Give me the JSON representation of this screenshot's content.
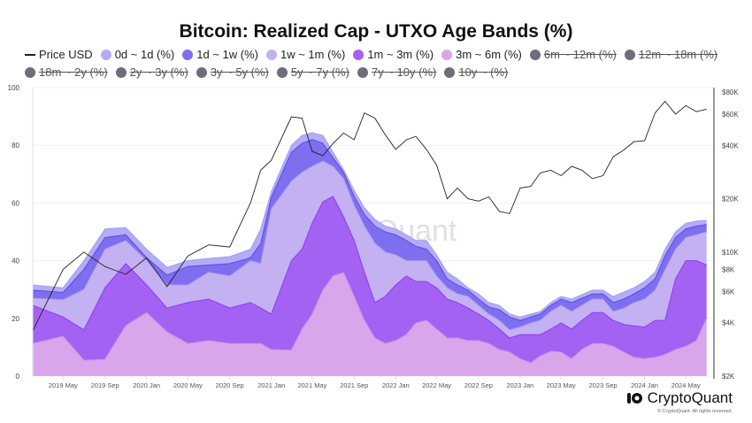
{
  "title": "Bitcoin: Realized Cap - UTXO Age Bands (%)",
  "legend": [
    {
      "label": "Price USD",
      "type": "line",
      "color": "#222222",
      "active": true
    },
    {
      "label": "0d ~ 1d (%)",
      "type": "dot",
      "color": "#b5acf7",
      "active": true
    },
    {
      "label": "1d ~ 1w (%)",
      "type": "dot",
      "color": "#7d6ff0",
      "active": true
    },
    {
      "label": "1w ~ 1m (%)",
      "type": "dot",
      "color": "#c3b1f2",
      "active": true
    },
    {
      "label": "1m ~ 3m (%)",
      "type": "dot",
      "color": "#a462f3",
      "active": true
    },
    {
      "label": "3m ~ 6m (%)",
      "type": "dot",
      "color": "#d9a6ec",
      "active": true
    },
    {
      "label": "6m ~ 12m (%)",
      "type": "dot",
      "color": "#6e6d7a",
      "active": false
    },
    {
      "label": "12m ~ 18m (%)",
      "type": "dot",
      "color": "#6e6d7a",
      "active": false
    },
    {
      "label": "18m ~ 2y (%)",
      "type": "dot",
      "color": "#6e6d7a",
      "active": false
    },
    {
      "label": "2y ~ 3y (%)",
      "type": "dot",
      "color": "#6e6d7a",
      "active": false
    },
    {
      "label": "3y ~ 5y (%)",
      "type": "dot",
      "color": "#6e6d7a",
      "active": false
    },
    {
      "label": "5y ~ 7y (%)",
      "type": "dot",
      "color": "#6e6d7a",
      "active": false
    },
    {
      "label": "7y ~ 10y (%)",
      "type": "dot",
      "color": "#6e6d7a",
      "active": false
    },
    {
      "label": "10y ~ (%)",
      "type": "dot",
      "color": "#6e6d7a",
      "active": false
    }
  ],
  "watermark": "CryptoQuant",
  "brand": {
    "name": "CryptoQuant",
    "copyright": "© CryptoQuant. All rights reserved."
  },
  "chart_data": {
    "type": "area",
    "stacked": true,
    "title": "Bitcoin: Realized Cap - UTXO Age Bands (%)",
    "grid": true,
    "legend_position": "top",
    "x": [
      "2019-02",
      "2019-05",
      "2019-07",
      "2019-09",
      "2019-11",
      "2020-01",
      "2020-03",
      "2020-05",
      "2020-07",
      "2020-09",
      "2020-11",
      "2020-12",
      "2021-01",
      "2021-03",
      "2021-04",
      "2021-05",
      "2021-06",
      "2021-07",
      "2021-08",
      "2021-09",
      "2021-10",
      "2021-11",
      "2021-12",
      "2022-01",
      "2022-02",
      "2022-03",
      "2022-04",
      "2022-05",
      "2022-06",
      "2022-07",
      "2022-08",
      "2022-09",
      "2022-10",
      "2022-11",
      "2022-12",
      "2023-01",
      "2023-02",
      "2023-03",
      "2023-04",
      "2023-05",
      "2023-06",
      "2023-07",
      "2023-08",
      "2023-09",
      "2023-10",
      "2023-11",
      "2023-12",
      "2024-01",
      "2024-02",
      "2024-03",
      "2024-04",
      "2024-05",
      "2024-06",
      "2024-07"
    ],
    "x_ticks": [
      "2019 May",
      "2019 Sep",
      "2020 Jan",
      "2020 May",
      "2020 Sep",
      "2021 Jan",
      "2021 May",
      "2021 Sep",
      "2022 Jan",
      "2022 May",
      "2022 Sep",
      "2023 Jan",
      "2023 May",
      "2023 Sep",
      "2024 Jan",
      "2024 May"
    ],
    "x_tick_dates": [
      "2019-05",
      "2019-09",
      "2020-01",
      "2020-05",
      "2020-09",
      "2021-01",
      "2021-05",
      "2021-09",
      "2022-01",
      "2022-05",
      "2022-09",
      "2023-01",
      "2023-05",
      "2023-09",
      "2024-01",
      "2024-05"
    ],
    "y_left": {
      "range": [
        0,
        100
      ],
      "ticks": [
        "0",
        "20",
        "40",
        "60",
        "80",
        "100"
      ]
    },
    "y_right": {
      "scale": "log",
      "range": [
        2000,
        80000
      ],
      "tick_values": [
        2000,
        4000,
        6000,
        8000,
        10000,
        20000,
        40000,
        60000,
        80000
      ],
      "ticks": [
        "$2K",
        "$4K",
        "$6K",
        "$8K",
        "$10K",
        "$20K",
        "$40K",
        "$60K",
        "$80K"
      ]
    },
    "series": [
      {
        "name": "3m ~ 6m (%)",
        "color": "#d9a6ec",
        "values": [
          11.3,
          13.8,
          5.5,
          5.8,
          17.5,
          22.0,
          15.3,
          11.3,
          12.3,
          11.3,
          11.3,
          11.3,
          9.2,
          9.0,
          16.3,
          21.5,
          29.8,
          34.7,
          35.9,
          27.6,
          19.3,
          13.2,
          11.3,
          12.3,
          14.4,
          18.4,
          19.3,
          16.3,
          13.2,
          13.2,
          12.3,
          12.3,
          11.3,
          9.2,
          8.3,
          6.0,
          4.6,
          7.0,
          8.6,
          8.3,
          6.0,
          9.2,
          11.3,
          11.3,
          10.3,
          8.3,
          6.5,
          6.0,
          6.5,
          7.5,
          9.2,
          10.3,
          12.3,
          20.0
        ]
      },
      {
        "name": "1m ~ 3m (%)",
        "color": "#a462f3",
        "values": [
          13.2,
          6.7,
          10.5,
          24.8,
          21.5,
          9.6,
          8.3,
          14.2,
          14.4,
          12.3,
          14.2,
          12.3,
          12.3,
          31.0,
          27.7,
          31.5,
          30.6,
          27.6,
          19.3,
          19.4,
          16.7,
          12.3,
          16.3,
          19.3,
          20.3,
          14.4,
          13.5,
          14.3,
          13.5,
          12.3,
          11.3,
          9.2,
          8.0,
          7.1,
          4.9,
          8.4,
          9.8,
          7.4,
          7.7,
          10.1,
          10.3,
          10.1,
          10.7,
          10.7,
          9.0,
          9.6,
          10.9,
          11.0,
          12.8,
          11.8,
          24.5,
          29.7,
          27.7,
          18.5
        ]
      },
      {
        "name": "1w ~ 1m (%)",
        "color": "#c3b1f2",
        "values": [
          2.5,
          6.0,
          14.0,
          13.4,
          8.0,
          8.4,
          8.0,
          6.1,
          9.3,
          11.1,
          14.5,
          15.4,
          36.5,
          27.5,
          26.6,
          19.7,
          14.1,
          10.4,
          13.2,
          12.2,
          16.0,
          20.5,
          15.4,
          10.4,
          5.3,
          7.2,
          7.2,
          4.1,
          3.9,
          3.0,
          4.0,
          3.0,
          2.2,
          3.0,
          2.8,
          2.6,
          4.0,
          4.9,
          6.1,
          6.1,
          6.1,
          5.2,
          4.7,
          4.7,
          3.1,
          5.6,
          8.1,
          9.7,
          10.5,
          17.5,
          10.3,
          8.0,
          9.0,
          11.5
        ]
      },
      {
        "name": "1d ~ 1w (%)",
        "color": "#7d6ff0",
        "values": [
          2.8,
          2.5,
          7.0,
          4.0,
          2.0,
          1.0,
          3.4,
          6.4,
          2.5,
          4.3,
          1.0,
          7.0,
          4.0,
          10.1,
          10.1,
          9.3,
          6.2,
          3.0,
          2.2,
          3.1,
          4.0,
          6.0,
          7.0,
          7.0,
          7.0,
          5.0,
          4.0,
          5.3,
          3.1,
          3.1,
          2.2,
          2.2,
          2.5,
          3.7,
          4.5,
          2.3,
          2.1,
          2.2,
          2.1,
          2.2,
          3.1,
          2.5,
          1.8,
          1.8,
          3.1,
          3.2,
          3.0,
          3.9,
          3.9,
          4.9,
          4.0,
          3.0,
          3.0,
          2.5
        ]
      },
      {
        "name": "0d ~ 1d (%)",
        "color": "#b5acf7",
        "values": [
          1.8,
          1.6,
          3.0,
          3.0,
          2.5,
          3.0,
          2.7,
          2.0,
          2.3,
          2.4,
          3.0,
          5.0,
          2.0,
          2.4,
          2.7,
          2.4,
          2.7,
          1.9,
          0.9,
          2.1,
          2.3,
          2.3,
          2.0,
          2.0,
          2.0,
          2.0,
          3.0,
          2.0,
          2.3,
          2.1,
          0.8,
          1.8,
          1.5,
          1.5,
          1.0,
          1.2,
          1.0,
          0.9,
          1.0,
          0.9,
          1.2,
          1.2,
          1.3,
          1.3,
          2.1,
          2.4,
          2.1,
          2.2,
          2.3,
          2.3,
          2.0,
          2.0,
          1.7,
          1.5
        ]
      }
    ],
    "price": {
      "name": "Price USD",
      "axis": "right",
      "color": "#222222",
      "values": [
        3600,
        8000,
        10000,
        8300,
        7500,
        9300,
        6400,
        9500,
        11000,
        10700,
        19000,
        29000,
        33000,
        58000,
        57000,
        37000,
        35000,
        41000,
        47000,
        43000,
        61000,
        57000,
        46000,
        38000,
        43000,
        45000,
        38000,
        31000,
        20000,
        23000,
        20000,
        19400,
        20500,
        17000,
        16500,
        23000,
        23500,
        28000,
        29000,
        27000,
        30500,
        29000,
        26000,
        27000,
        34500,
        37700,
        42000,
        42500,
        61000,
        71000,
        60000,
        67000,
        62000,
        64000
      ]
    }
  }
}
